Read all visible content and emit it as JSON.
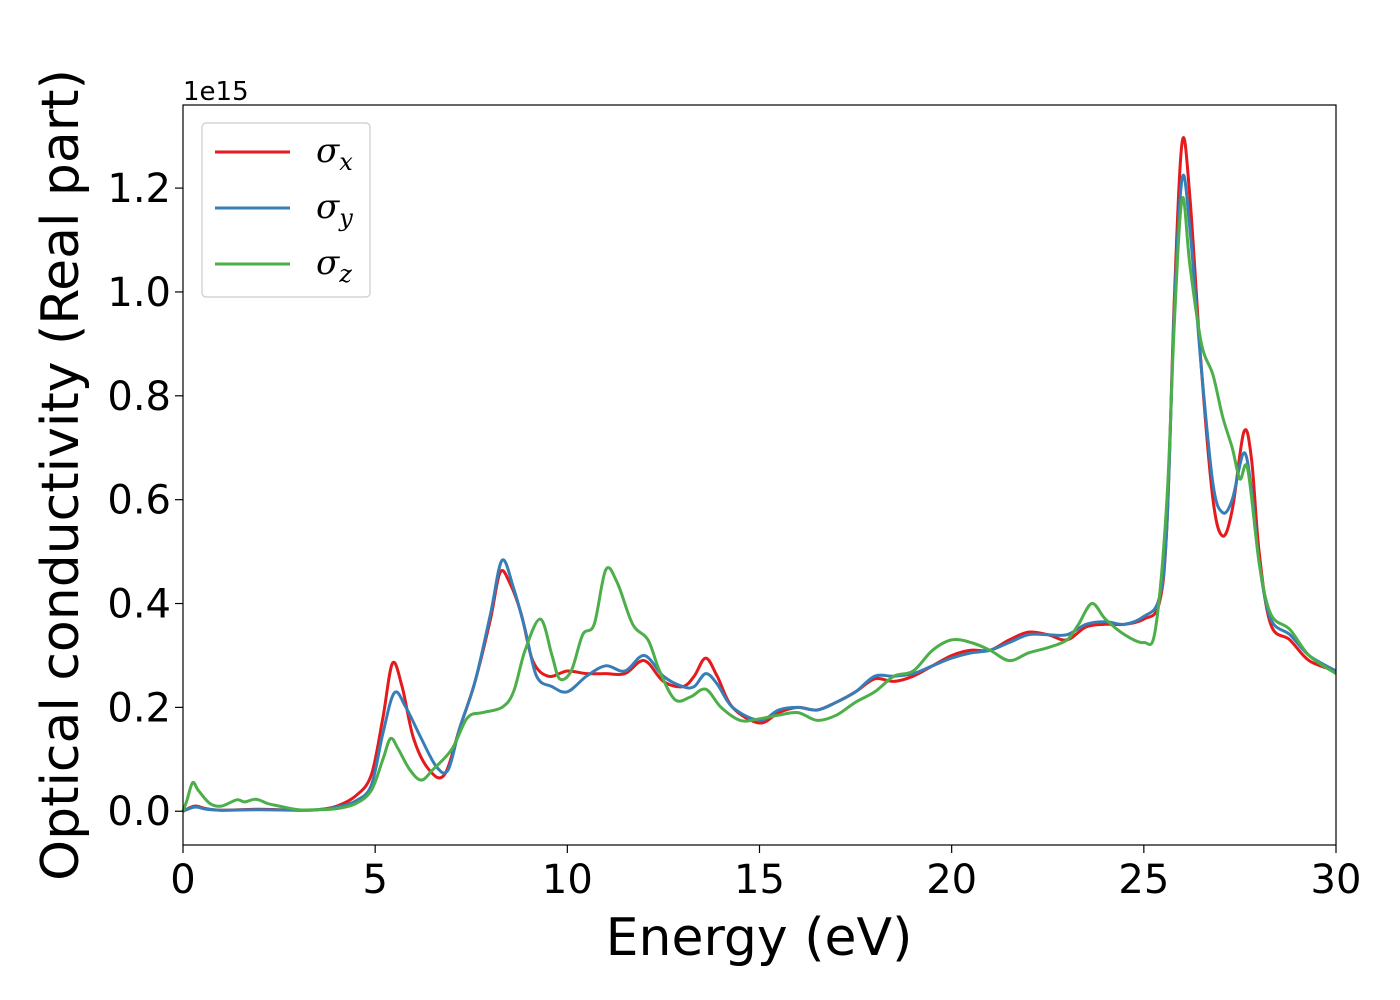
{
  "chart_data": {
    "type": "line",
    "title": "",
    "xlabel": "Energy (eV)",
    "ylabel": "Optical conductivity (Real part)",
    "y_offset_label": "1e15",
    "xlim": [
      0,
      30
    ],
    "ylim": [
      -0.065,
      1.36
    ],
    "x_ticks": [
      0,
      5,
      10,
      15,
      20,
      25,
      30
    ],
    "x_tick_labels": [
      "0",
      "5",
      "10",
      "15",
      "20",
      "25",
      "30"
    ],
    "y_ticks": [
      0.0,
      0.2,
      0.4,
      0.6,
      0.8,
      1.0,
      1.2
    ],
    "y_tick_labels": [
      "0.0",
      "0.2",
      "0.4",
      "0.6",
      "0.8",
      "1.0",
      "1.2"
    ],
    "grid": false,
    "legend_position": "upper-left",
    "series": [
      {
        "name": "σx",
        "symbol": "σ",
        "subscript": "x",
        "color": "#e41a1c",
        "points": [
          [
            0,
            0
          ],
          [
            0.3,
            0.01
          ],
          [
            0.6,
            0.005
          ],
          [
            1,
            0.002
          ],
          [
            2,
            0.004
          ],
          [
            3,
            0.002
          ],
          [
            3.5,
            0.003
          ],
          [
            4,
            0.01
          ],
          [
            4.5,
            0.03
          ],
          [
            4.9,
            0.07
          ],
          [
            5.2,
            0.18
          ],
          [
            5.45,
            0.285
          ],
          [
            5.7,
            0.24
          ],
          [
            6,
            0.14
          ],
          [
            6.4,
            0.08
          ],
          [
            6.8,
            0.07
          ],
          [
            7.2,
            0.16
          ],
          [
            7.6,
            0.25
          ],
          [
            8.0,
            0.37
          ],
          [
            8.25,
            0.46
          ],
          [
            8.5,
            0.44
          ],
          [
            8.8,
            0.38
          ],
          [
            9.1,
            0.29
          ],
          [
            9.5,
            0.26
          ],
          [
            10,
            0.27
          ],
          [
            10.5,
            0.265
          ],
          [
            11,
            0.265
          ],
          [
            11.5,
            0.265
          ],
          [
            12,
            0.29
          ],
          [
            12.5,
            0.25
          ],
          [
            13,
            0.24
          ],
          [
            13.3,
            0.26
          ],
          [
            13.6,
            0.295
          ],
          [
            13.9,
            0.26
          ],
          [
            14.3,
            0.2
          ],
          [
            15,
            0.17
          ],
          [
            15.5,
            0.19
          ],
          [
            16,
            0.2
          ],
          [
            16.5,
            0.195
          ],
          [
            17,
            0.21
          ],
          [
            17.5,
            0.23
          ],
          [
            18,
            0.255
          ],
          [
            18.5,
            0.25
          ],
          [
            19,
            0.26
          ],
          [
            19.5,
            0.28
          ],
          [
            20,
            0.3
          ],
          [
            20.5,
            0.31
          ],
          [
            21,
            0.31
          ],
          [
            21.5,
            0.33
          ],
          [
            22,
            0.345
          ],
          [
            22.5,
            0.34
          ],
          [
            23,
            0.33
          ],
          [
            23.5,
            0.355
          ],
          [
            24,
            0.36
          ],
          [
            24.5,
            0.36
          ],
          [
            25,
            0.37
          ],
          [
            25.4,
            0.4
          ],
          [
            25.6,
            0.55
          ],
          [
            25.8,
            1.0
          ],
          [
            26.0,
            1.29
          ],
          [
            26.2,
            1.18
          ],
          [
            26.5,
            0.85
          ],
          [
            26.8,
            0.6
          ],
          [
            27.05,
            0.53
          ],
          [
            27.3,
            0.58
          ],
          [
            27.6,
            0.73
          ],
          [
            27.8,
            0.68
          ],
          [
            28.0,
            0.5
          ],
          [
            28.3,
            0.36
          ],
          [
            28.8,
            0.33
          ],
          [
            29.3,
            0.29
          ],
          [
            30,
            0.27
          ]
        ]
      },
      {
        "name": "σy",
        "symbol": "σ",
        "subscript": "y",
        "color": "#377eb8",
        "points": [
          [
            0,
            0
          ],
          [
            0.3,
            0.008
          ],
          [
            0.6,
            0.004
          ],
          [
            1,
            0.002
          ],
          [
            2,
            0.003
          ],
          [
            3,
            0.002
          ],
          [
            3.5,
            0.003
          ],
          [
            4,
            0.008
          ],
          [
            4.5,
            0.02
          ],
          [
            4.9,
            0.05
          ],
          [
            5.2,
            0.15
          ],
          [
            5.5,
            0.228
          ],
          [
            5.8,
            0.2
          ],
          [
            6.2,
            0.14
          ],
          [
            6.6,
            0.085
          ],
          [
            6.9,
            0.08
          ],
          [
            7.2,
            0.16
          ],
          [
            7.6,
            0.25
          ],
          [
            8.0,
            0.38
          ],
          [
            8.3,
            0.483
          ],
          [
            8.6,
            0.43
          ],
          [
            8.9,
            0.35
          ],
          [
            9.2,
            0.26
          ],
          [
            9.6,
            0.24
          ],
          [
            10,
            0.23
          ],
          [
            10.5,
            0.26
          ],
          [
            11,
            0.28
          ],
          [
            11.5,
            0.27
          ],
          [
            12,
            0.3
          ],
          [
            12.5,
            0.26
          ],
          [
            13,
            0.24
          ],
          [
            13.3,
            0.24
          ],
          [
            13.6,
            0.265
          ],
          [
            13.9,
            0.245
          ],
          [
            14.3,
            0.2
          ],
          [
            15,
            0.175
          ],
          [
            15.5,
            0.195
          ],
          [
            16,
            0.2
          ],
          [
            16.5,
            0.195
          ],
          [
            17,
            0.21
          ],
          [
            17.5,
            0.23
          ],
          [
            18,
            0.26
          ],
          [
            18.5,
            0.26
          ],
          [
            19,
            0.265
          ],
          [
            19.5,
            0.28
          ],
          [
            20,
            0.295
          ],
          [
            20.5,
            0.305
          ],
          [
            21,
            0.31
          ],
          [
            21.5,
            0.325
          ],
          [
            22,
            0.34
          ],
          [
            22.5,
            0.34
          ],
          [
            23,
            0.34
          ],
          [
            23.5,
            0.36
          ],
          [
            24,
            0.365
          ],
          [
            24.5,
            0.36
          ],
          [
            25,
            0.375
          ],
          [
            25.4,
            0.41
          ],
          [
            25.6,
            0.55
          ],
          [
            25.8,
            0.98
          ],
          [
            26.0,
            1.22
          ],
          [
            26.2,
            1.12
          ],
          [
            26.5,
            0.85
          ],
          [
            26.8,
            0.63
          ],
          [
            27.05,
            0.575
          ],
          [
            27.3,
            0.6
          ],
          [
            27.6,
            0.69
          ],
          [
            27.8,
            0.62
          ],
          [
            28.0,
            0.48
          ],
          [
            28.3,
            0.37
          ],
          [
            28.8,
            0.34
          ],
          [
            29.3,
            0.3
          ],
          [
            30,
            0.27
          ]
        ]
      },
      {
        "name": "σz",
        "symbol": "σ",
        "subscript": "z",
        "color": "#4daf4a",
        "points": [
          [
            0,
            0
          ],
          [
            0.1,
            0.02
          ],
          [
            0.25,
            0.055
          ],
          [
            0.4,
            0.04
          ],
          [
            0.7,
            0.015
          ],
          [
            1.0,
            0.01
          ],
          [
            1.4,
            0.022
          ],
          [
            1.6,
            0.018
          ],
          [
            1.9,
            0.023
          ],
          [
            2.2,
            0.015
          ],
          [
            2.5,
            0.01
          ],
          [
            3,
            0.003
          ],
          [
            3.5,
            0.003
          ],
          [
            4,
            0.005
          ],
          [
            4.5,
            0.015
          ],
          [
            4.9,
            0.04
          ],
          [
            5.2,
            0.1
          ],
          [
            5.4,
            0.14
          ],
          [
            5.6,
            0.12
          ],
          [
            5.9,
            0.08
          ],
          [
            6.2,
            0.06
          ],
          [
            6.5,
            0.08
          ],
          [
            7.0,
            0.12
          ],
          [
            7.4,
            0.18
          ],
          [
            7.8,
            0.19
          ],
          [
            8.3,
            0.2
          ],
          [
            8.6,
            0.23
          ],
          [
            8.9,
            0.31
          ],
          [
            9.3,
            0.37
          ],
          [
            9.6,
            0.3
          ],
          [
            9.8,
            0.255
          ],
          [
            10.1,
            0.27
          ],
          [
            10.4,
            0.34
          ],
          [
            10.7,
            0.36
          ],
          [
            11.0,
            0.465
          ],
          [
            11.3,
            0.44
          ],
          [
            11.7,
            0.36
          ],
          [
            12.1,
            0.33
          ],
          [
            12.4,
            0.27
          ],
          [
            12.8,
            0.215
          ],
          [
            13.2,
            0.22
          ],
          [
            13.6,
            0.235
          ],
          [
            14.0,
            0.2
          ],
          [
            14.5,
            0.175
          ],
          [
            15,
            0.178
          ],
          [
            15.5,
            0.185
          ],
          [
            16,
            0.19
          ],
          [
            16.5,
            0.175
          ],
          [
            17,
            0.185
          ],
          [
            17.5,
            0.21
          ],
          [
            18,
            0.23
          ],
          [
            18.5,
            0.26
          ],
          [
            19,
            0.27
          ],
          [
            19.5,
            0.31
          ],
          [
            20,
            0.33
          ],
          [
            20.5,
            0.325
          ],
          [
            21,
            0.31
          ],
          [
            21.5,
            0.29
          ],
          [
            22,
            0.305
          ],
          [
            22.5,
            0.315
          ],
          [
            23,
            0.33
          ],
          [
            23.3,
            0.36
          ],
          [
            23.65,
            0.4
          ],
          [
            24,
            0.37
          ],
          [
            24.5,
            0.34
          ],
          [
            25,
            0.325
          ],
          [
            25.3,
            0.35
          ],
          [
            25.6,
            0.6
          ],
          [
            25.8,
            0.95
          ],
          [
            26.0,
            1.18
          ],
          [
            26.2,
            1.05
          ],
          [
            26.5,
            0.9
          ],
          [
            26.8,
            0.84
          ],
          [
            27.05,
            0.76
          ],
          [
            27.3,
            0.7
          ],
          [
            27.5,
            0.64
          ],
          [
            27.7,
            0.66
          ],
          [
            28.0,
            0.48
          ],
          [
            28.3,
            0.38
          ],
          [
            28.8,
            0.35
          ],
          [
            29.3,
            0.3
          ],
          [
            30,
            0.265
          ]
        ]
      }
    ]
  }
}
